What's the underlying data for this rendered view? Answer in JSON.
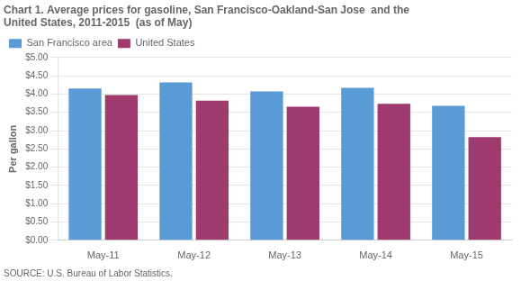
{
  "chart_data": {
    "type": "bar",
    "title": "Chart 1. Average prices for gasoline, San Francisco-Oakland-San Jose  and the\nUnited States, 2011-2015  (as of May)",
    "ylabel": "Per gallon",
    "annotations": [
      "SOURCE: U.S. Bureau of Labor Statistics."
    ],
    "categories": [
      "May-11",
      "May-12",
      "May-13",
      "May-14",
      "May-15"
    ],
    "series": [
      {
        "name": "San Francisco area",
        "color": "#5B9BD5",
        "values": [
          4.15,
          4.32,
          4.07,
          4.17,
          3.68
        ]
      },
      {
        "name": "United States",
        "color": "#9E3A6E",
        "values": [
          3.97,
          3.82,
          3.65,
          3.73,
          2.82
        ]
      }
    ],
    "ylim": [
      0.0,
      5.0
    ],
    "yticks": [
      {
        "value": 0.0,
        "label": "$0.00"
      },
      {
        "value": 0.5,
        "label": "$0.50"
      },
      {
        "value": 1.0,
        "label": "$1.00"
      },
      {
        "value": 1.5,
        "label": "$1.50"
      },
      {
        "value": 2.0,
        "label": "$2.00"
      },
      {
        "value": 2.5,
        "label": "$2.50"
      },
      {
        "value": 3.0,
        "label": "$3.00"
      },
      {
        "value": 3.5,
        "label": "$3.50"
      },
      {
        "value": 4.0,
        "label": "$4.00"
      },
      {
        "value": 4.5,
        "label": "$4.50"
      },
      {
        "value": 5.0,
        "label": "$5.00"
      }
    ],
    "grid": "y",
    "legend": "upper left"
  }
}
